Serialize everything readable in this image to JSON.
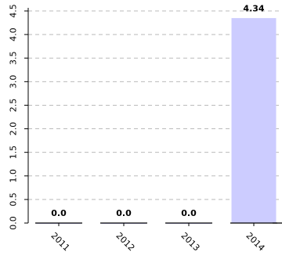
{
  "chart_data": {
    "type": "bar",
    "categories": [
      "2011",
      "2012",
      "2013",
      "2014"
    ],
    "values": [
      0.0,
      0.0,
      0.0,
      4.34
    ],
    "value_labels": [
      "0.0",
      "0.0",
      "0.0",
      "4.34"
    ],
    "ylim": [
      0,
      4.5
    ],
    "yticks": [
      "0.0",
      "0.5",
      "1.0",
      "1.5",
      "2.0",
      "2.5",
      "3.0",
      "3.5",
      "4.0",
      "4.5"
    ],
    "grid": true,
    "colors": {
      "bar": "#ccccff",
      "grid": "#bbbbbb",
      "axis": "#000000"
    }
  }
}
